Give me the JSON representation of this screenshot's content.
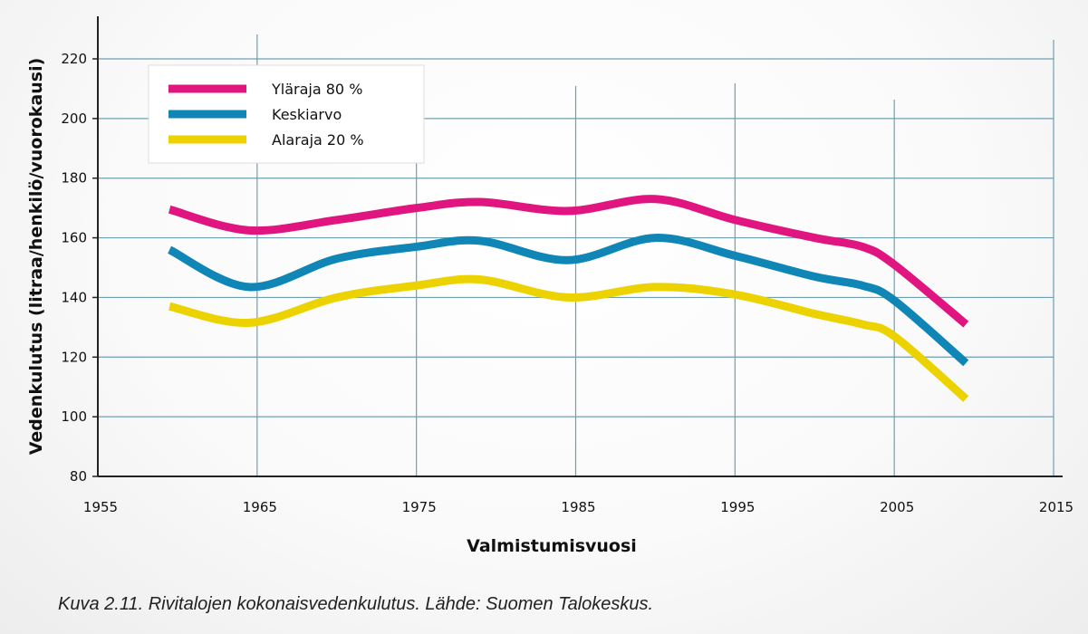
{
  "chart_data": {
    "type": "line",
    "xlabel": "Valmistumisvuosi",
    "ylabel": "Vedenkulutus (litraa/henkilö/vuorokausi)",
    "xlim": [
      1955,
      2015
    ],
    "ylim": [
      80,
      230
    ],
    "x_ticks": [
      1955,
      1965,
      1975,
      1985,
      1995,
      2005,
      2015
    ],
    "y_ticks": [
      80,
      100,
      120,
      140,
      160,
      180,
      200,
      220
    ],
    "grid": true,
    "legend_position": "top-left",
    "series": [
      {
        "name": "Yläraja 80 %",
        "color": "#e0157f",
        "x": [
          1959.5,
          1964.5,
          1970,
          1975,
          1979,
          1984.5,
          1990,
          1995,
          2000,
          2003,
          2005,
          2009.5
        ],
        "y": [
          169.5,
          162.5,
          166,
          170,
          172,
          169,
          173,
          166,
          160,
          157,
          151,
          131
        ]
      },
      {
        "name": "Keskiarvo",
        "color": "#0f86b6",
        "x": [
          1959.5,
          1964.5,
          1970,
          1975,
          1979,
          1984.5,
          1990,
          1995,
          2000,
          2003,
          2005,
          2009.5
        ],
        "y": [
          156,
          143.5,
          153,
          157,
          159,
          152.5,
          160,
          154,
          147,
          144,
          139,
          118
        ]
      },
      {
        "name": "Alaraja 20 %",
        "color": "#ecd300",
        "x": [
          1959.5,
          1964.5,
          1970,
          1975,
          1979,
          1984.5,
          1990,
          1995,
          2000,
          2003,
          2005,
          2009.5
        ],
        "y": [
          137,
          131.5,
          140,
          144,
          146,
          140,
          143.5,
          141,
          134.5,
          131,
          127,
          106
        ]
      }
    ]
  },
  "caption": "Kuva 2.11. Rivitalojen kokonaisvedenkulutus. Lähde: Suomen Talokeskus."
}
